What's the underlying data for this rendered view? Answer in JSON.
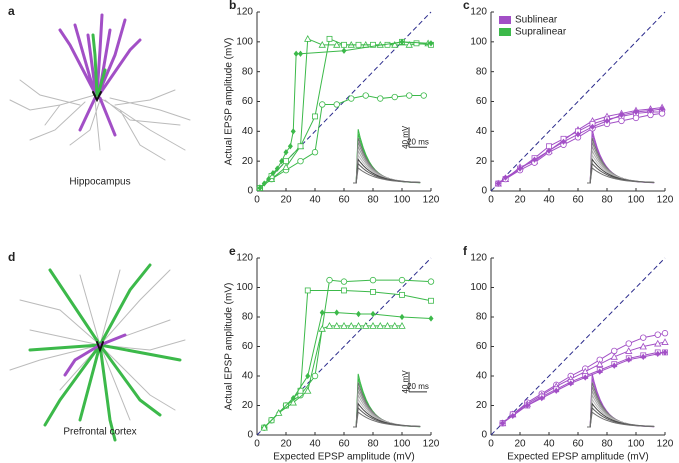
{
  "panels": [
    {
      "label": "a",
      "caption": "Hippocampus"
    },
    {
      "label": "d",
      "caption": "Prefrontal cortex"
    }
  ],
  "chart_data": [
    {
      "type": "line",
      "panel": "b",
      "ylabel": "Actual EPSP amplitude (mV)",
      "xlim": [
        0,
        120
      ],
      "ylim": [
        0,
        120
      ],
      "xticks": [
        0,
        20,
        40,
        60,
        80,
        100,
        120
      ],
      "yticks": [
        0,
        20,
        40,
        60,
        80,
        100,
        120
      ],
      "identity_line": true,
      "inset": {
        "scale_y": "40 mV",
        "scale_x": "20 ms"
      },
      "series": [
        {
          "color": "#3cb94a",
          "marker": "circle",
          "x": [
            2,
            10,
            20,
            30,
            40,
            45,
            55,
            65,
            75,
            85,
            95,
            105,
            115
          ],
          "values": [
            2,
            8,
            14,
            20,
            26,
            58,
            58,
            62,
            64,
            62,
            63,
            64,
            64
          ]
        },
        {
          "color": "#3cb94a",
          "marker": "triangle",
          "x": [
            2,
            10,
            20,
            30,
            35,
            45,
            55,
            65,
            75,
            85,
            95,
            105,
            118
          ],
          "values": [
            2,
            8,
            16,
            30,
            102,
            98,
            98,
            98,
            98,
            98,
            98,
            98,
            99
          ]
        },
        {
          "color": "#3cb94a",
          "marker": "square",
          "x": [
            2,
            10,
            20,
            30,
            40,
            50,
            60,
            70,
            80,
            90,
            100,
            110,
            120
          ],
          "values": [
            2,
            10,
            20,
            30,
            50,
            102,
            98,
            98,
            98,
            98,
            100,
            99,
            98
          ]
        },
        {
          "color": "#3cb94a",
          "marker": "diamond",
          "x": [
            2,
            5,
            8,
            11,
            14,
            17,
            20,
            23,
            25,
            27,
            30,
            60,
            100,
            120
          ],
          "values": [
            2,
            5,
            8,
            12,
            15,
            20,
            26,
            30,
            40,
            92,
            92,
            94,
            100,
            99
          ]
        }
      ]
    },
    {
      "type": "line",
      "panel": "c",
      "xlim": [
        0,
        120
      ],
      "ylim": [
        0,
        120
      ],
      "xticks": [
        0,
        20,
        40,
        60,
        80,
        100,
        120
      ],
      "yticks": [
        0,
        20,
        40,
        60,
        80,
        100,
        120
      ],
      "identity_line": true,
      "legend": [
        {
          "label": "Sublinear",
          "color": "#a24fc6"
        },
        {
          "label": "Supralinear",
          "color": "#3cb94a"
        }
      ],
      "series": [
        {
          "color": "#a24fc6",
          "marker": "triangle",
          "x": [
            5,
            10,
            20,
            30,
            40,
            50,
            60,
            70,
            80,
            90,
            100,
            110,
            118
          ],
          "values": [
            5,
            8,
            16,
            20,
            27,
            34,
            41,
            47,
            50,
            52,
            54,
            55,
            56
          ]
        },
        {
          "color": "#a24fc6",
          "marker": "square",
          "x": [
            5,
            10,
            20,
            30,
            40,
            50,
            60,
            70,
            80,
            90,
            100,
            110,
            118
          ],
          "values": [
            5,
            8,
            15,
            22,
            30,
            35,
            40,
            45,
            48,
            50,
            52,
            53,
            53
          ]
        },
        {
          "color": "#a24fc6",
          "marker": "circle",
          "x": [
            5,
            10,
            20,
            30,
            40,
            50,
            60,
            70,
            80,
            90,
            100,
            110,
            118
          ],
          "values": [
            5,
            8,
            14,
            19,
            26,
            31,
            36,
            42,
            45,
            47,
            49,
            51,
            52
          ]
        },
        {
          "color": "#a24fc6",
          "marker": "diamond",
          "x": [
            5,
            10,
            20,
            30,
            40,
            50,
            60,
            70,
            80,
            90,
            100,
            110,
            118
          ],
          "values": [
            5,
            9,
            15,
            21,
            27,
            33,
            38,
            43,
            47,
            51,
            53,
            54,
            55
          ]
        }
      ]
    },
    {
      "type": "line",
      "panel": "e",
      "ylabel": "Actual EPSP amplitude (mV)",
      "xlabel": "Expected EPSP amplitude (mV)",
      "xlim": [
        0,
        120
      ],
      "ylim": [
        0,
        120
      ],
      "xticks": [
        0,
        20,
        40,
        60,
        80,
        100,
        120
      ],
      "yticks": [
        0,
        20,
        40,
        60,
        80,
        100,
        120
      ],
      "identity_line": true,
      "inset": {
        "scale_y": "40 mV",
        "scale_x": "20 ms"
      },
      "series": [
        {
          "color": "#3cb94a",
          "marker": "circle",
          "x": [
            5,
            10,
            20,
            30,
            40,
            50,
            60,
            80,
            100,
            120
          ],
          "values": [
            5,
            10,
            20,
            27,
            40,
            105,
            104,
            105,
            105,
            104
          ]
        },
        {
          "color": "#3cb94a",
          "marker": "square",
          "x": [
            5,
            10,
            20,
            30,
            35,
            60,
            80,
            100,
            120
          ],
          "values": [
            5,
            10,
            20,
            30,
            98,
            98,
            97,
            95,
            91
          ]
        },
        {
          "color": "#3cb94a",
          "marker": "diamond",
          "x": [
            5,
            15,
            25,
            35,
            45,
            55,
            70,
            80,
            100,
            120
          ],
          "values": [
            5,
            15,
            25,
            40,
            83,
            83,
            82,
            82,
            80,
            79
          ]
        },
        {
          "color": "#3cb94a",
          "marker": "triangle",
          "x": [
            5,
            15,
            25,
            35,
            45,
            50,
            55,
            60,
            65,
            70,
            75,
            80,
            85,
            90,
            95,
            100
          ],
          "values": [
            5,
            15,
            22,
            30,
            72,
            74,
            74,
            74,
            74,
            74,
            74,
            74,
            74,
            74,
            74,
            74
          ]
        }
      ]
    },
    {
      "type": "line",
      "panel": "f",
      "xlabel": "Expected EPSP amplitude (mV)",
      "xlim": [
        0,
        120
      ],
      "ylim": [
        0,
        120
      ],
      "xticks": [
        0,
        20,
        40,
        60,
        80,
        100,
        120
      ],
      "yticks": [
        0,
        20,
        40,
        60,
        80,
        100,
        120
      ],
      "identity_line": true,
      "series": [
        {
          "color": "#a24fc6",
          "marker": "circle",
          "x": [
            8,
            15,
            25,
            35,
            45,
            55,
            65,
            75,
            85,
            95,
            105,
            115,
            120
          ],
          "values": [
            8,
            14,
            22,
            28,
            34,
            40,
            45,
            51,
            57,
            62,
            66,
            68,
            69
          ]
        },
        {
          "color": "#a24fc6",
          "marker": "triangle",
          "x": [
            8,
            15,
            25,
            35,
            45,
            55,
            65,
            75,
            85,
            95,
            105,
            115,
            120
          ],
          "values": [
            8,
            14,
            21,
            27,
            33,
            38,
            43,
            48,
            53,
            57,
            60,
            62,
            63
          ]
        },
        {
          "color": "#a24fc6",
          "marker": "square",
          "x": [
            8,
            15,
            25,
            35,
            45,
            55,
            65,
            75,
            85,
            95,
            105,
            115,
            120
          ],
          "values": [
            8,
            14,
            20,
            26,
            31,
            36,
            40,
            44,
            48,
            52,
            54,
            56,
            56
          ]
        },
        {
          "color": "#a24fc6",
          "marker": "diamond",
          "x": [
            8,
            15,
            25,
            35,
            45,
            55,
            65,
            75,
            85,
            95,
            105,
            115,
            120
          ],
          "values": [
            8,
            13,
            20,
            25,
            30,
            35,
            39,
            43,
            47,
            51,
            53,
            55,
            56
          ]
        }
      ]
    }
  ]
}
